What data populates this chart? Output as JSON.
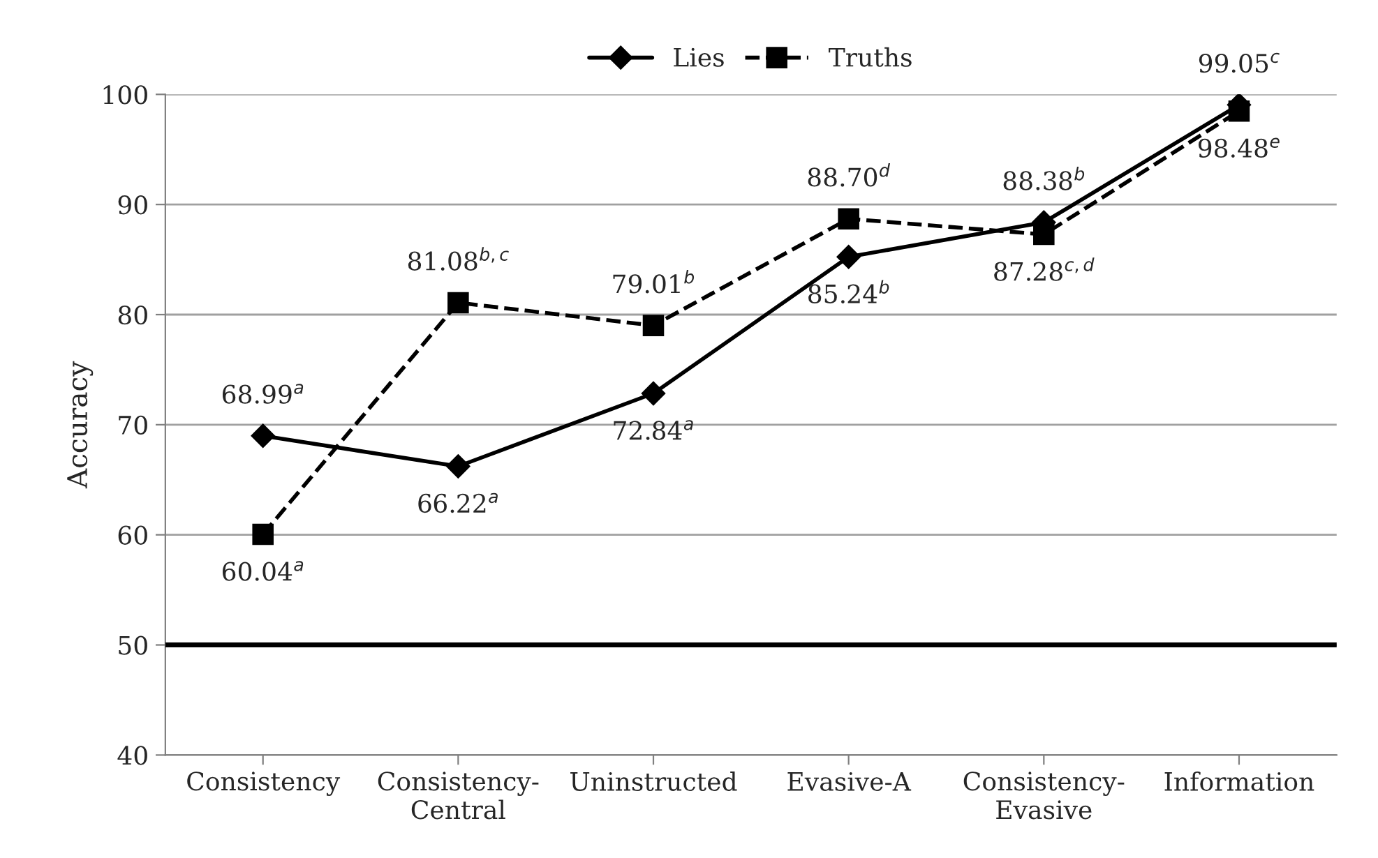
{
  "chart_data": {
    "type": "line",
    "ylabel": "Accuracy",
    "categories": [
      "Consistency",
      "Consistency-\nCentral",
      "Uninstructed",
      "Evasive-A",
      "Consistency-\nEvasive",
      "Information"
    ],
    "series": [
      {
        "name": "Lies",
        "color": "#000000",
        "marker": "diamond",
        "line_style": "solid",
        "values": [
          68.99,
          66.22,
          72.84,
          85.24,
          88.38,
          99.05
        ],
        "value_labels": [
          "68.99$^{a}$",
          "66.22$^{a}$",
          "72.84$^{a}$",
          "85.24$^{b}$",
          "88.38$^{b}$",
          "99.05$^{c}$"
        ]
      },
      {
        "name": "Truths",
        "color": "#000000",
        "marker": "square",
        "line_style": "dashed",
        "values": [
          60.04,
          81.08,
          79.01,
          88.7,
          87.28,
          98.48
        ],
        "value_labels": [
          "60.04$^{a}$",
          "81.08$^{b,c}$",
          "79.01$^{b}$",
          "88.70$^{d}$",
          "87.28$^{c,d}$",
          "98.48$^{e}$"
        ]
      }
    ],
    "ylim": [
      40,
      100
    ],
    "yticks": [
      40,
      50,
      60,
      70,
      80,
      90,
      100
    ],
    "grid": "y",
    "legend": "top",
    "ref_lines": [
      {
        "axis": "y",
        "value": 50,
        "color": "#000000",
        "line_style": "solid"
      }
    ]
  }
}
